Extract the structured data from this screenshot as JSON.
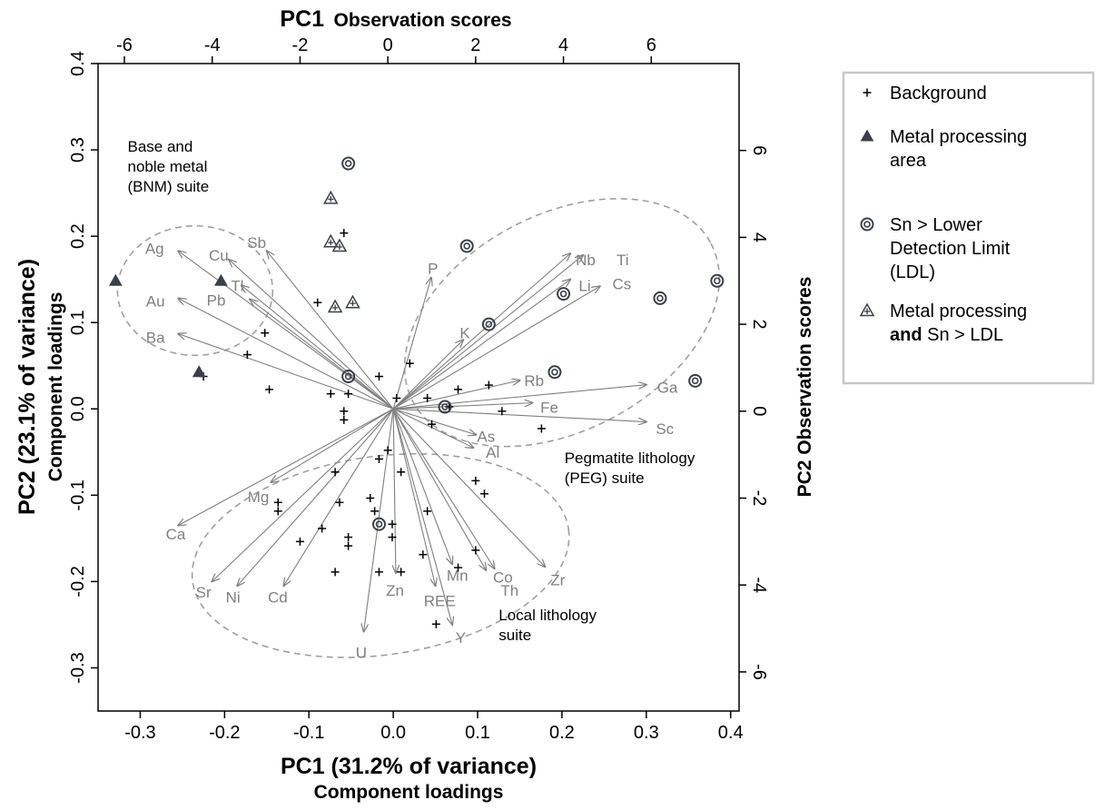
{
  "chart_data": {
    "type": "scatter",
    "title_top": "PC1",
    "title_top_sub": "Observation scores",
    "xlabel": "PC1 (31.2% of variance)",
    "xlabel_sub": "Component loadings",
    "ylabel": "PC2 (23.1% of variance)",
    "ylabel_sub": "Component loadings",
    "ylabel_right": "PC2 Observation scores",
    "loadings_xlim": [
      -0.35,
      0.41
    ],
    "loadings_ylim": [
      -0.35,
      0.4
    ],
    "scores_xlim": [
      -6.6,
      8.0
    ],
    "scores_ylim": [
      -6.9,
      8.0
    ],
    "bottom_ticks": [
      "-0.3",
      "-0.2",
      "-0.1",
      "0.0",
      "0.1",
      "0.2",
      "0.3",
      "0.4"
    ],
    "bottom_tick_values": [
      -0.3,
      -0.2,
      -0.1,
      0.0,
      0.1,
      0.2,
      0.3,
      0.4
    ],
    "left_ticks": [
      "-0.3",
      "-0.2",
      "-0.1",
      "0.0",
      "0.1",
      "0.2",
      "0.3",
      "0.4"
    ],
    "left_tick_values": [
      -0.3,
      -0.2,
      -0.1,
      0.0,
      0.1,
      0.2,
      0.3,
      0.4
    ],
    "top_ticks": [
      "-6",
      "-4",
      "-2",
      "0",
      "2",
      "4",
      "6"
    ],
    "top_tick_values": [
      -6,
      -4,
      -2,
      0,
      2,
      4,
      6
    ],
    "right_ticks": [
      "-6",
      "-4",
      "-2",
      "0",
      "2",
      "4",
      "6"
    ],
    "right_tick_values": [
      -6,
      -4,
      -2,
      0,
      2,
      4,
      6
    ],
    "loadings": [
      {
        "label": "Ag",
        "x": -0.255,
        "y": 0.183,
        "lx": -0.283,
        "ly": 0.186
      },
      {
        "label": "Cu",
        "x": -0.195,
        "y": 0.173,
        "lx": -0.207,
        "ly": 0.178
      },
      {
        "label": "Sb",
        "x": -0.15,
        "y": 0.183,
        "lx": -0.162,
        "ly": 0.193
      },
      {
        "label": "Tl",
        "x": -0.18,
        "y": 0.143,
        "lx": -0.185,
        "ly": 0.143
      },
      {
        "label": "Pb",
        "x": -0.17,
        "y": 0.127,
        "lx": -0.21,
        "ly": 0.126
      },
      {
        "label": "Au",
        "x": -0.255,
        "y": 0.128,
        "lx": -0.282,
        "ly": 0.125
      },
      {
        "label": "Ba",
        "x": -0.255,
        "y": 0.087,
        "lx": -0.282,
        "ly": 0.083
      },
      {
        "label": "P",
        "x": 0.045,
        "y": 0.152,
        "lx": 0.047,
        "ly": 0.163
      },
      {
        "label": "K",
        "x": 0.083,
        "y": 0.08,
        "lx": 0.085,
        "ly": 0.088
      },
      {
        "label": "Nb",
        "x": 0.21,
        "y": 0.18,
        "lx": 0.228,
        "ly": 0.173
      },
      {
        "label": "Ti",
        "x": 0.225,
        "y": 0.178,
        "lx": 0.272,
        "ly": 0.173
      },
      {
        "label": "Li",
        "x": 0.21,
        "y": 0.15,
        "lx": 0.227,
        "ly": 0.143
      },
      {
        "label": "Cs",
        "x": 0.245,
        "y": 0.142,
        "lx": 0.271,
        "ly": 0.145
      },
      {
        "label": "Rb",
        "x": 0.15,
        "y": 0.033,
        "lx": 0.167,
        "ly": 0.033
      },
      {
        "label": "Ga",
        "x": 0.3,
        "y": 0.028,
        "lx": 0.325,
        "ly": 0.025
      },
      {
        "label": "Fe",
        "x": 0.165,
        "y": 0.007,
        "lx": 0.185,
        "ly": 0.002
      },
      {
        "label": "Sc",
        "x": 0.3,
        "y": -0.015,
        "lx": 0.322,
        "ly": -0.023
      },
      {
        "label": "As",
        "x": 0.098,
        "y": -0.03,
        "lx": 0.11,
        "ly": -0.032
      },
      {
        "label": "Al",
        "x": 0.095,
        "y": -0.045,
        "lx": 0.118,
        "ly": -0.05
      },
      {
        "label": "Mg",
        "x": -0.145,
        "y": -0.085,
        "lx": -0.16,
        "ly": -0.102
      },
      {
        "label": "Ca",
        "x": -0.255,
        "y": -0.135,
        "lx": -0.258,
        "ly": -0.145
      },
      {
        "label": "Sr",
        "x": -0.215,
        "y": -0.2,
        "lx": -0.225,
        "ly": -0.212
      },
      {
        "label": "Ni",
        "x": -0.185,
        "y": -0.205,
        "lx": -0.19,
        "ly": -0.218
      },
      {
        "label": "Cd",
        "x": -0.13,
        "y": -0.205,
        "lx": -0.137,
        "ly": -0.218
      },
      {
        "label": "U",
        "x": -0.035,
        "y": -0.258,
        "lx": -0.038,
        "ly": -0.282
      },
      {
        "label": "Zn",
        "x": 0.003,
        "y": -0.19,
        "lx": 0.002,
        "ly": -0.21
      },
      {
        "label": "REE",
        "x": 0.05,
        "y": -0.205,
        "lx": 0.055,
        "ly": -0.222
      },
      {
        "label": "Y",
        "x": 0.07,
        "y": -0.25,
        "lx": 0.08,
        "ly": -0.265
      },
      {
        "label": "Mn",
        "x": 0.07,
        "y": -0.18,
        "lx": 0.076,
        "ly": -0.193
      },
      {
        "label": "Co",
        "x": 0.12,
        "y": -0.185,
        "lx": 0.13,
        "ly": -0.195
      },
      {
        "label": "Th",
        "x": 0.11,
        "y": -0.187,
        "lx": 0.138,
        "ly": -0.21
      },
      {
        "label": "Zr",
        "x": 0.18,
        "y": -0.183,
        "lx": 0.195,
        "ly": -0.198
      }
    ],
    "series": [
      {
        "name": "Background",
        "marker": "plus",
        "points": [
          [
            -1.0,
            4.1
          ],
          [
            -1.6,
            2.5
          ],
          [
            -3.2,
            1.3
          ],
          [
            -4.2,
            0.8
          ],
          [
            -2.8,
            1.8
          ],
          [
            -2.7,
            0.5
          ],
          [
            -1.3,
            0.4
          ],
          [
            -0.9,
            0.4
          ],
          [
            -0.2,
            0.8
          ],
          [
            0.5,
            1.1
          ],
          [
            -1.0,
            0.0
          ],
          [
            -1.0,
            -0.2
          ],
          [
            0.2,
            0.3
          ],
          [
            0.9,
            0.3
          ],
          [
            1.6,
            0.5
          ],
          [
            2.3,
            0.6
          ],
          [
            1.0,
            -0.3
          ],
          [
            2.6,
            0.0
          ],
          [
            3.5,
            -0.4
          ],
          [
            1.4,
            0.1
          ],
          [
            -1.2,
            -1.4
          ],
          [
            -1.1,
            -2.1
          ],
          [
            -0.2,
            -1.1
          ],
          [
            0.3,
            -1.4
          ],
          [
            0.0,
            -0.9
          ],
          [
            2.0,
            -1.6
          ],
          [
            2.2,
            -1.9
          ],
          [
            -2.5,
            -2.1
          ],
          [
            -2.5,
            -2.3
          ],
          [
            -1.5,
            -2.7
          ],
          [
            -2.0,
            -3.0
          ],
          [
            -0.9,
            -2.9
          ],
          [
            -0.9,
            -3.1
          ],
          [
            -0.4,
            -2.0
          ],
          [
            -0.3,
            -2.3
          ],
          [
            0.1,
            -2.6
          ],
          [
            0.1,
            -2.9
          ],
          [
            0.9,
            -2.3
          ],
          [
            0.8,
            -3.3
          ],
          [
            1.6,
            -3.6
          ],
          [
            -1.2,
            -3.7
          ],
          [
            -0.2,
            -3.7
          ],
          [
            0.3,
            -3.7
          ],
          [
            1.1,
            -4.9
          ],
          [
            2.0,
            -3.2
          ]
        ]
      },
      {
        "name": "Metal processing area",
        "marker": "triangle",
        "points": [
          [
            -6.2,
            3.0
          ],
          [
            -3.8,
            3.0
          ],
          [
            -4.3,
            0.9
          ]
        ]
      },
      {
        "name": "Sn > Lower Detection Limit (LDL)",
        "marker": "ring",
        "points": [
          [
            -0.9,
            5.7
          ],
          [
            1.8,
            3.8
          ],
          [
            4.0,
            2.7
          ],
          [
            2.3,
            2.0
          ],
          [
            6.2,
            2.6
          ],
          [
            7.5,
            3.0
          ],
          [
            3.8,
            0.9
          ],
          [
            7.0,
            0.7
          ],
          [
            1.3,
            0.1
          ],
          [
            -0.9,
            0.8
          ],
          [
            -0.2,
            -2.6
          ]
        ]
      },
      {
        "name": "Metal processing and Sn > LDL",
        "marker": "triangle-plus",
        "points": [
          [
            -1.3,
            4.9
          ],
          [
            -1.3,
            3.9
          ],
          [
            -1.1,
            3.8
          ],
          [
            -0.8,
            2.5
          ],
          [
            -1.2,
            2.4
          ]
        ]
      }
    ],
    "annotations": [
      {
        "lines": [
          "Base and",
          "noble metal",
          "(BNM) suite"
        ],
        "x": -0.315,
        "y": 0.298
      },
      {
        "lines": [
          "Pegmatite lithology",
          "(PEG) suite"
        ],
        "x": 0.203,
        "y": -0.063
      },
      {
        "lines": [
          "Local lithology",
          "suite"
        ],
        "x": 0.125,
        "y": -0.245
      }
    ],
    "ellipses": [
      {
        "cx": -0.235,
        "cy": 0.137,
        "rx": 0.092,
        "ry": 0.075,
        "rot": 0
      },
      {
        "cx": 0.2,
        "cy": 0.1,
        "rx": 0.2,
        "ry": 0.125,
        "rot": -28
      },
      {
        "cx": -0.015,
        "cy": -0.17,
        "rx": 0.225,
        "ry": 0.115,
        "rot": -8
      }
    ],
    "legend": {
      "position": "right",
      "items": [
        {
          "marker": "plus",
          "lines": [
            {
              "text": "Background"
            }
          ]
        },
        {
          "marker": "triangle",
          "lines": [
            {
              "text": "Metal processing"
            },
            {
              "text": "area"
            }
          ]
        },
        {
          "marker": "ring",
          "lines": [
            {
              "text": "Sn > Lower"
            },
            {
              "text": "Detection Limit"
            },
            {
              "text": "(LDL)"
            }
          ]
        },
        {
          "marker": "triangle-plus",
          "lines": [
            {
              "text": "Metal processing"
            },
            {
              "parts": [
                {
                  "text": "and",
                  "bold": true
                },
                {
                  "text": " Sn > LDL"
                }
              ]
            }
          ]
        }
      ]
    },
    "colors": {
      "vector": "#808080",
      "ellipse": "#a0a0a0",
      "marker": "#3a4048",
      "legend_border": "#c8c8c8"
    }
  }
}
